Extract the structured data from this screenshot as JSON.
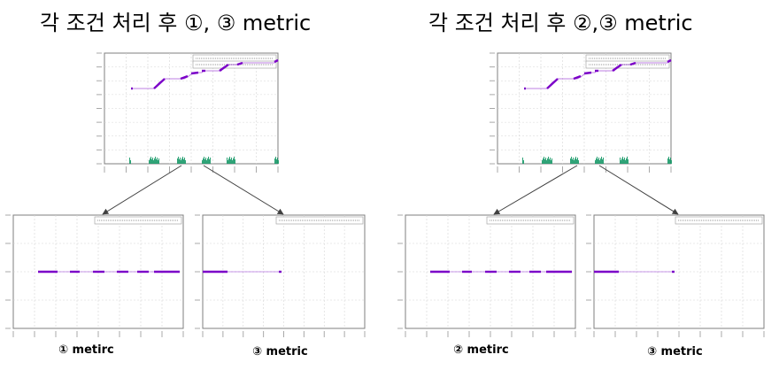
{
  "titles": {
    "left": "각 조건 처리 후 ①, ③ metric",
    "right": "각 조건 처리 후 ②,③ metric"
  },
  "captions": {
    "left_a": "① metirc",
    "left_b": "③ metric",
    "right_a": "② metirc",
    "right_b": "③ metric"
  },
  "colors": {
    "metric_line": "#7b00c8",
    "activity": "#1a9a6a",
    "grid": "#d6d6d6",
    "frame": "#7f7f7f",
    "arrow": "#404040"
  }
}
